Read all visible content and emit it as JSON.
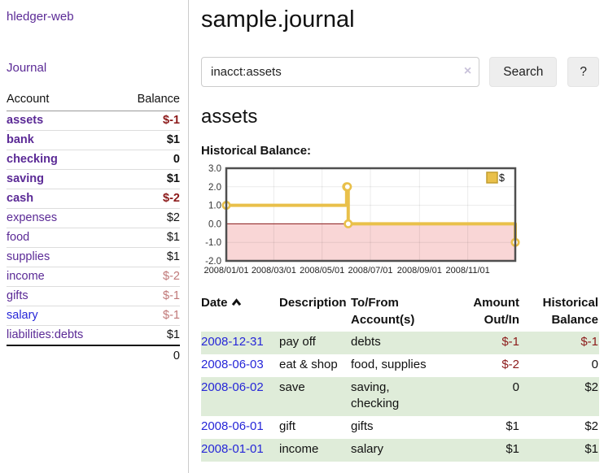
{
  "app": {
    "brand": "hledger-web"
  },
  "colors": {
    "link_purple": "#5b2a96",
    "link_blue": "#2626d8",
    "negative_red": "#8c1a1a",
    "negative_soft_red": "#c07878",
    "row_stripe_green": "#dfecd9",
    "chart_line_gold": "#e9c04a",
    "chart_negative_pink": "#f9d6d6",
    "chart_zero_line": "#8b1a1a",
    "button_gray": "#eeeeee"
  },
  "sidebar": {
    "journal_link": "Journal",
    "accounts_table": {
      "col_account": "Account",
      "col_balance": "Balance",
      "rows": [
        {
          "name": "assets",
          "level": 0,
          "bold": true,
          "balance": "$-1",
          "balance_class": "neg"
        },
        {
          "name": "bank",
          "level": 1,
          "bold": true,
          "balance": "$1",
          "balance_class": ""
        },
        {
          "name": "checking",
          "level": 2,
          "bold": true,
          "balance": "0",
          "balance_class": ""
        },
        {
          "name": "saving",
          "level": 2,
          "bold": true,
          "balance": "$1",
          "balance_class": ""
        },
        {
          "name": "cash",
          "level": 1,
          "bold": true,
          "balance": "$-2",
          "balance_class": "neg"
        },
        {
          "name": "expenses",
          "level": 0,
          "bold": false,
          "balance": "$2",
          "balance_class": ""
        },
        {
          "name": "food",
          "level": 1,
          "bold": false,
          "balance": "$1",
          "balance_class": ""
        },
        {
          "name": "supplies",
          "level": 1,
          "bold": false,
          "balance": "$1",
          "balance_class": ""
        },
        {
          "name": "income",
          "level": 0,
          "bold": false,
          "balance": "$-2",
          "balance_class": "negsoft"
        },
        {
          "name": "gifts",
          "level": 1,
          "bold": false,
          "balance": "$-1",
          "balance_class": "negsoft"
        },
        {
          "name": "salary",
          "level": 1,
          "bold": false,
          "balance": "$-1",
          "balance_class": "negsoft",
          "link_color": "blue"
        },
        {
          "name": "liabilities:debts",
          "level": 0,
          "bold": false,
          "balance": "$1",
          "balance_class": ""
        }
      ],
      "total": "0"
    }
  },
  "main": {
    "title": "sample.journal",
    "search": {
      "value": "inacct:assets",
      "clear_icon": "×",
      "button_label": "Search",
      "help_label": "?"
    },
    "account_heading": "assets",
    "chart_label": "Historical Balance:"
  },
  "chart_data": {
    "type": "line",
    "title": "Historical Balance",
    "step": true,
    "series": [
      {
        "name": "$",
        "color": "#e9c04a",
        "points": [
          [
            "2008-01-01",
            1
          ],
          [
            "2008-06-01",
            2
          ],
          [
            "2008-06-02",
            2
          ],
          [
            "2008-06-03",
            0
          ],
          [
            "2008-12-31",
            -1
          ]
        ]
      }
    ],
    "x_ticks": [
      "2008/01/01",
      "2008/03/01",
      "2008/05/01",
      "2008/07/01",
      "2008/09/01",
      "2008/11/01"
    ],
    "y_ticks": [
      "3.0",
      "2.0",
      "1.0",
      "0.0",
      "-1.0",
      "-2.0"
    ],
    "ylim": [
      -2,
      3
    ],
    "x_range": [
      "2008-01-01",
      "2008-12-31"
    ],
    "grid": true,
    "negative_fill": "#f9d6d6",
    "zero_line_color": "#8b1a1a",
    "legend": {
      "label": "$",
      "position": "top-right"
    }
  },
  "register": {
    "columns": [
      "Date",
      "Description",
      "To/From\nAccount(s)",
      "Amount\nOut/In",
      "Historical\nBalance"
    ],
    "sort": {
      "column": "Date",
      "direction": "ascending"
    },
    "rows": [
      {
        "date": "2008-12-31",
        "description": "pay off",
        "tofrom": "debts",
        "amount": "$-1",
        "amount_class": "neg",
        "balance": "$-1",
        "balance_class": "neg"
      },
      {
        "date": "2008-06-03",
        "description": "eat & shop",
        "tofrom": "food, supplies",
        "amount": "$-2",
        "amount_class": "neg",
        "balance": "0",
        "balance_class": ""
      },
      {
        "date": "2008-06-02",
        "description": "save",
        "tofrom": "saving,\nchecking",
        "amount": "0",
        "amount_class": "",
        "balance": "$2",
        "balance_class": ""
      },
      {
        "date": "2008-06-01",
        "description": "gift",
        "tofrom": "gifts",
        "amount": "$1",
        "amount_class": "",
        "balance": "$2",
        "balance_class": ""
      },
      {
        "date": "2008-01-01",
        "description": "income",
        "tofrom": "salary",
        "amount": "$1",
        "amount_class": "",
        "balance": "$1",
        "balance_class": ""
      }
    ]
  }
}
